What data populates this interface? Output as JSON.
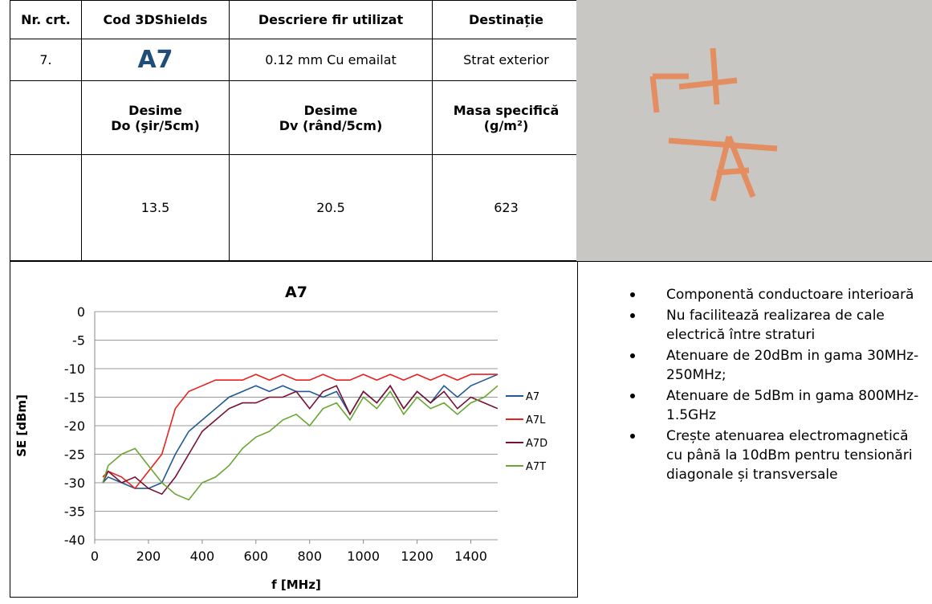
{
  "table": {
    "header": [
      "Nr. crt.",
      "Cod 3DShields",
      "Descriere fir utilizat",
      "Destinație"
    ],
    "row": [
      "7.",
      "A7",
      "0.12 mm Cu emailat",
      "Strat exterior"
    ],
    "subheader": [
      {
        "title": "Desime",
        "unit": "Do (şir/5cm)"
      },
      {
        "title": "Desime",
        "unit": "Dv (rând/5cm)"
      },
      {
        "title": "Masa specifică",
        "unit": "(g/m²)"
      }
    ],
    "values": [
      "13.5",
      "20.5",
      "623"
    ]
  },
  "bullets": [
    "Componentă conductoare interioară",
    "Nu facilitează realizarea de cale electrică între straturi",
    "Atenuare de 20dBm in gama 30MHz-250MHz;",
    "Atenuare de 5dBm in gama 800MHz-1.5GHz",
    "Crește atenuarea electromagnetică cu până la 10dBm pentru tensionări diagonale și transversale"
  ],
  "chart_data": {
    "type": "line",
    "title": "A7",
    "x_label": "f [MHz]",
    "y_label": "SE [dBm]",
    "x": [
      30,
      50,
      100,
      150,
      200,
      250,
      300,
      350,
      400,
      450,
      500,
      550,
      600,
      650,
      700,
      750,
      800,
      850,
      900,
      950,
      1000,
      1050,
      1100,
      1150,
      1200,
      1250,
      1300,
      1350,
      1400,
      1450,
      1500
    ],
    "series": [
      {
        "name": "A7",
        "color": "#1f5a96",
        "values": [
          -30,
          -29,
          -30,
          -31,
          -31,
          -30,
          -25,
          -21,
          -19,
          -17,
          -15,
          -14,
          -13,
          -14,
          -13,
          -14,
          -14,
          -15,
          -14,
          -18,
          -14,
          -16,
          -13,
          -17,
          -14,
          -16,
          -13,
          -15,
          -13,
          -12,
          -11
        ]
      },
      {
        "name": "A7L",
        "color": "#e8211d",
        "values": [
          -29,
          -28,
          -29,
          -31,
          -28,
          -25,
          -17,
          -14,
          -13,
          -12,
          -12,
          -12,
          -11,
          -12,
          -11,
          -12,
          -12,
          -11,
          -12,
          -12,
          -11,
          -12,
          -11,
          -12,
          -11,
          -12,
          -11,
          -12,
          -11,
          -11,
          -11
        ]
      },
      {
        "name": "A7D",
        "color": "#7a1030",
        "values": [
          -30,
          -28,
          -30,
          -29,
          -31,
          -32,
          -29,
          -25,
          -21,
          -19,
          -17,
          -16,
          -16,
          -15,
          -15,
          -14,
          -17,
          -14,
          -13,
          -18,
          -14,
          -16,
          -13,
          -17,
          -14,
          -16,
          -14,
          -17,
          -15,
          -16,
          -17
        ]
      },
      {
        "name": "A7T",
        "color": "#6aa632",
        "values": [
          -30,
          -27,
          -25,
          -24,
          -27,
          -30,
          -32,
          -33,
          -30,
          -29,
          -27,
          -24,
          -22,
          -21,
          -19,
          -18,
          -20,
          -17,
          -16,
          -19,
          -15,
          -17,
          -14,
          -18,
          -15,
          -17,
          -16,
          -18,
          -16,
          -15,
          -13
        ]
      }
    ],
    "xlim": [
      0,
      1500
    ],
    "ylim": [
      -40,
      0
    ],
    "xticks": [
      0,
      200,
      400,
      600,
      800,
      1000,
      1200,
      1400
    ],
    "yticks": [
      0,
      -5,
      -10,
      -15,
      -20,
      -25,
      -30,
      -35,
      -40
    ],
    "grid": true
  }
}
